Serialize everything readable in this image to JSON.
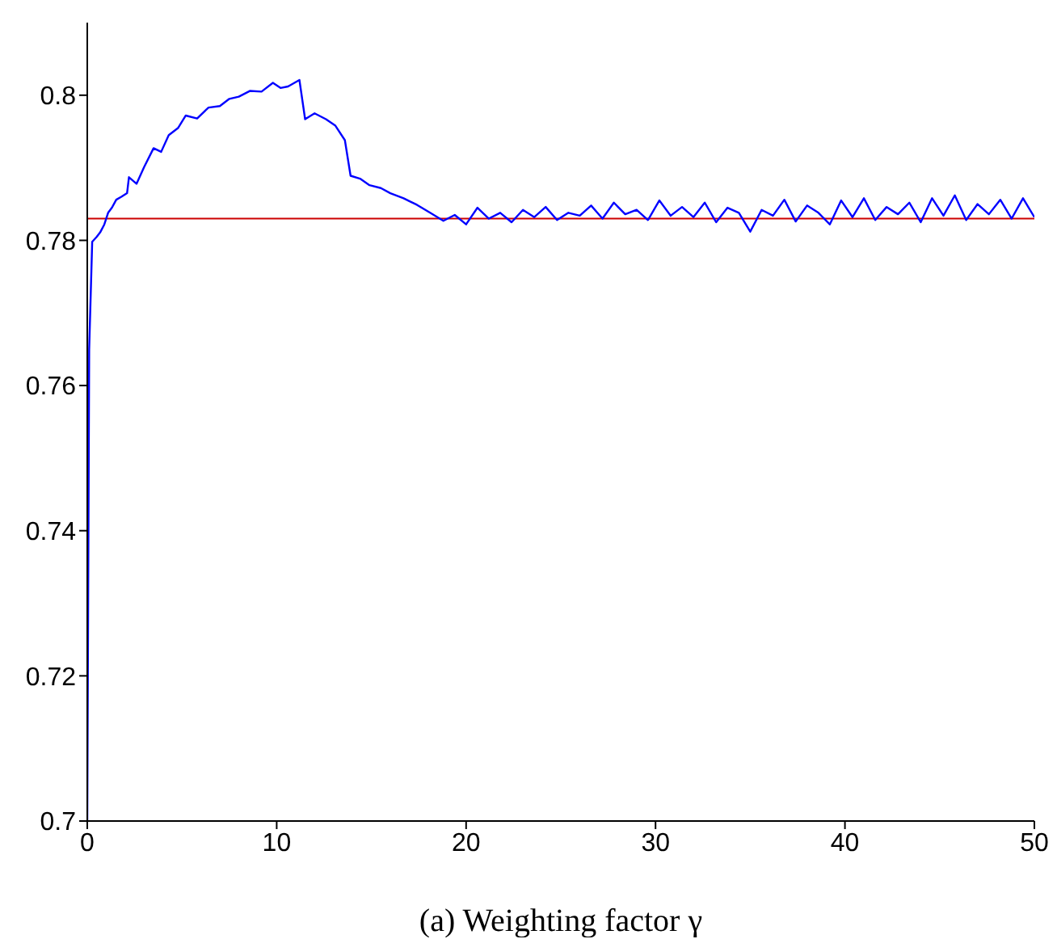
{
  "chart_data": {
    "type": "line",
    "xlabel": "(a) Weighting factor γ",
    "x": [
      0,
      0.1,
      0.26,
      0.5,
      0.68,
      0.9,
      1.1,
      1.3,
      1.53,
      1.8,
      2.1,
      2.2,
      2.6,
      3.0,
      3.5,
      3.9,
      4.3,
      4.8,
      5.2,
      5.8,
      6.4,
      7.0,
      7.5,
      8.0,
      8.6,
      9.2,
      9.8,
      10.2,
      10.6,
      11.2,
      11.5,
      12.0,
      12.6,
      13.1,
      13.6,
      13.9,
      14.4,
      14.9,
      15.5,
      16.0,
      16.7,
      17.4,
      18.1,
      18.8,
      19.4,
      20.0,
      20.6,
      21.2,
      21.8,
      22.4,
      23.0,
      23.6,
      24.2,
      24.8,
      25.4,
      26.0,
      26.6,
      27.2,
      27.8,
      28.4,
      29.0,
      29.6,
      30.2,
      30.8,
      31.4,
      32.0,
      32.6,
      33.2,
      33.8,
      34.4,
      35.0,
      35.6,
      36.2,
      36.8,
      37.4,
      38.0,
      38.6,
      39.2,
      39.8,
      40.4,
      41.0,
      41.6,
      42.2,
      42.8,
      43.4,
      44.0,
      44.6,
      45.2,
      45.8,
      46.4,
      47.0,
      47.6,
      48.2,
      48.8,
      49.4,
      50.0
    ],
    "series": [
      {
        "color": "#0000ff",
        "values": [
          0.7,
          0.765,
          0.7798,
          0.7805,
          0.7811,
          0.7822,
          0.7838,
          0.7845,
          0.7856,
          0.786,
          0.7865,
          0.7887,
          0.7878,
          0.7901,
          0.7927,
          0.7922,
          0.7945,
          0.7955,
          0.7972,
          0.7968,
          0.7983,
          0.7985,
          0.7995,
          0.7998,
          0.8006,
          0.8005,
          0.8017,
          0.801,
          0.8012,
          0.8021,
          0.7967,
          0.7975,
          0.7967,
          0.7958,
          0.7938,
          0.7889,
          0.7885,
          0.7876,
          0.7872,
          0.7865,
          0.7858,
          0.7849,
          0.7838,
          0.7827,
          0.7835,
          0.7822,
          0.7845,
          0.783,
          0.7838,
          0.7825,
          0.7842,
          0.7832,
          0.7846,
          0.7828,
          0.7838,
          0.7834,
          0.7848,
          0.783,
          0.7852,
          0.7836,
          0.7842,
          0.7828,
          0.7855,
          0.7834,
          0.7846,
          0.7832,
          0.7852,
          0.7825,
          0.7845,
          0.7838,
          0.7812,
          0.7842,
          0.7834,
          0.7856,
          0.7826,
          0.7848,
          0.7838,
          0.7822,
          0.7855,
          0.7832,
          0.7858,
          0.7828,
          0.7846,
          0.7836,
          0.7852,
          0.7825,
          0.7858,
          0.7834,
          0.7862,
          0.7828,
          0.785,
          0.7836,
          0.7856,
          0.783,
          0.7858,
          0.7832
        ]
      }
    ],
    "xlim": [
      0,
      50
    ],
    "xticks": [
      0,
      10,
      20,
      30,
      40,
      50
    ],
    "ylim": [
      0.7,
      0.81
    ],
    "yticks": [
      0.7,
      0.72,
      0.74,
      0.76,
      0.78,
      0.8
    ],
    "ref_lines": [
      {
        "axis": "y",
        "value": 0.783,
        "color": "#cc0000"
      }
    ],
    "grid": false,
    "legend": false,
    "marker": "none",
    "line_style": "solid"
  }
}
